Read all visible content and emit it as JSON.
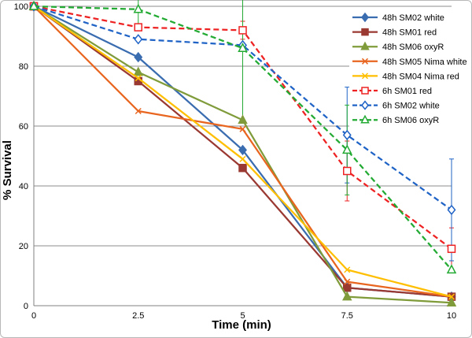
{
  "chart_data": {
    "type": "line",
    "title": "",
    "xlabel": "Time (min)",
    "ylabel": "% Survival",
    "x": [
      0,
      2.5,
      5,
      7.5,
      10
    ],
    "xticks": [
      "0",
      "2.5",
      "5",
      "7.5",
      "10"
    ],
    "yticks": [
      "0",
      "20",
      "40",
      "60",
      "80",
      "100"
    ],
    "xlim": [
      0,
      10
    ],
    "ylim": [
      0,
      100
    ],
    "grid": "horizontal",
    "legend": "top-right",
    "series": [
      {
        "name": "48h SM02 white",
        "values": [
          100,
          83,
          52,
          6,
          3
        ],
        "color": "#3a6cb0",
        "dash": "solid",
        "marker": "diamond-filled"
      },
      {
        "name": "48h SM01 red",
        "values": [
          100,
          75,
          46,
          6,
          3
        ],
        "color": "#9a3832",
        "dash": "solid",
        "marker": "square-filled"
      },
      {
        "name": "48h SM06 oxyR",
        "values": [
          100,
          78,
          62,
          3,
          1
        ],
        "color": "#7f9b3a",
        "dash": "solid",
        "marker": "triangle-filled"
      },
      {
        "name": "48h SM05 Nima white",
        "values": [
          100,
          65,
          59,
          8,
          3
        ],
        "color": "#e8651f",
        "dash": "solid",
        "marker": "x"
      },
      {
        "name": "48h SM04 Nima red",
        "values": [
          100,
          76,
          49,
          12,
          3
        ],
        "color": "#ffbf00",
        "dash": "solid",
        "marker": "x"
      },
      {
        "name": "6h SM01 red",
        "values": [
          100,
          93,
          92,
          45,
          19
        ],
        "color": "#ee2222",
        "dash": "dashed",
        "marker": "square-open",
        "errors": [
          0,
          0,
          3,
          10,
          7
        ]
      },
      {
        "name": "6h SM02 white",
        "values": [
          100,
          89,
          87,
          57,
          32
        ],
        "color": "#1f63c6",
        "dash": "dashed",
        "marker": "diamond-open",
        "errors": [
          0,
          0,
          0,
          16,
          17
        ]
      },
      {
        "name": "6h SM06 oxyR",
        "values": [
          100,
          99,
          86,
          52,
          12
        ],
        "color": "#22aa33",
        "dash": "dashed",
        "marker": "triangle-open",
        "errors": [
          0,
          6,
          25,
          15,
          0
        ]
      }
    ]
  }
}
